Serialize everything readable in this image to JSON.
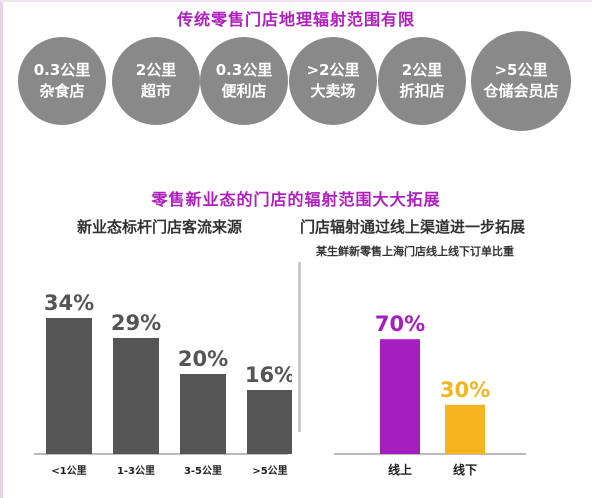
{
  "title_top": "传统零售门店地理辐射范围有限",
  "formats": [
    {
      "distance": "0.3公里",
      "type": "杂食店"
    },
    {
      "distance": "2公里",
      "type": "超市"
    },
    {
      "distance": "0.3公里",
      "type": "便利店"
    },
    {
      "distance": ">2公里",
      "type": "大卖场"
    },
    {
      "distance": "2公里",
      "type": "折扣店"
    },
    {
      "distance": ">5公里",
      "type": "仓储会员店"
    }
  ],
  "title_middle": "零售新业态的门店的辐射范围大大拓展",
  "chart_data": [
    {
      "type": "bar",
      "title": "新业态标杆门店客流来源",
      "categories": [
        "<1公里",
        "1-3公里",
        "3-5公里",
        ">5公里"
      ],
      "values": [
        34,
        29,
        20,
        16
      ],
      "value_labels": [
        "34%",
        "29%",
        "20%",
        "16%"
      ],
      "unit": "%",
      "colors": {
        "bar": "#555555",
        "value_text": "#555555",
        "axis": "#bbbbbb"
      }
    },
    {
      "type": "bar",
      "title": "门店辐射通过线上渠道进一步拓展",
      "subtitle": "某生鲜新零售上海门店线上线下订单比重",
      "categories": [
        "线上",
        "线下"
      ],
      "values": [
        70,
        30
      ],
      "value_labels": [
        "70%",
        "30%"
      ],
      "unit": "%",
      "colors": {
        "bars": [
          "#a61ec0",
          "#f7b41e"
        ],
        "axis": "#bbbbbb"
      }
    }
  ]
}
